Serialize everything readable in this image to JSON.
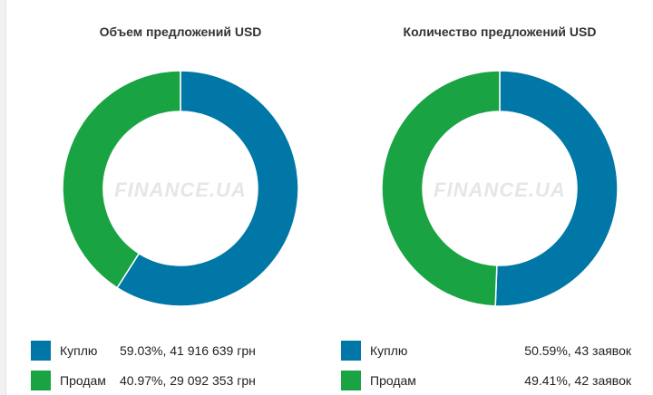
{
  "watermark": "FINANCE.UA",
  "colors": {
    "buy": "#0077a6",
    "sell": "#1aa343"
  },
  "chart_data": [
    {
      "type": "pie",
      "title": "Объем предложений USD",
      "labels": [
        "Куплю",
        "Продам"
      ],
      "values": [
        59.03,
        40.97
      ],
      "legend": [
        {
          "label": "Куплю",
          "value": "59.03%, 41 916 639 грн"
        },
        {
          "label": "Продам",
          "value": "40.97%, 29 092 353 грн"
        }
      ],
      "legend_position": "bottom"
    },
    {
      "type": "pie",
      "title": "Количество предложений USD",
      "labels": [
        "Куплю",
        "Продам"
      ],
      "values": [
        50.59,
        49.41
      ],
      "legend": [
        {
          "label": "Куплю",
          "value": "50.59%, 43 заявок"
        },
        {
          "label": "Продам",
          "value": "49.41%, 42 заявок"
        }
      ],
      "legend_position": "bottom"
    }
  ]
}
